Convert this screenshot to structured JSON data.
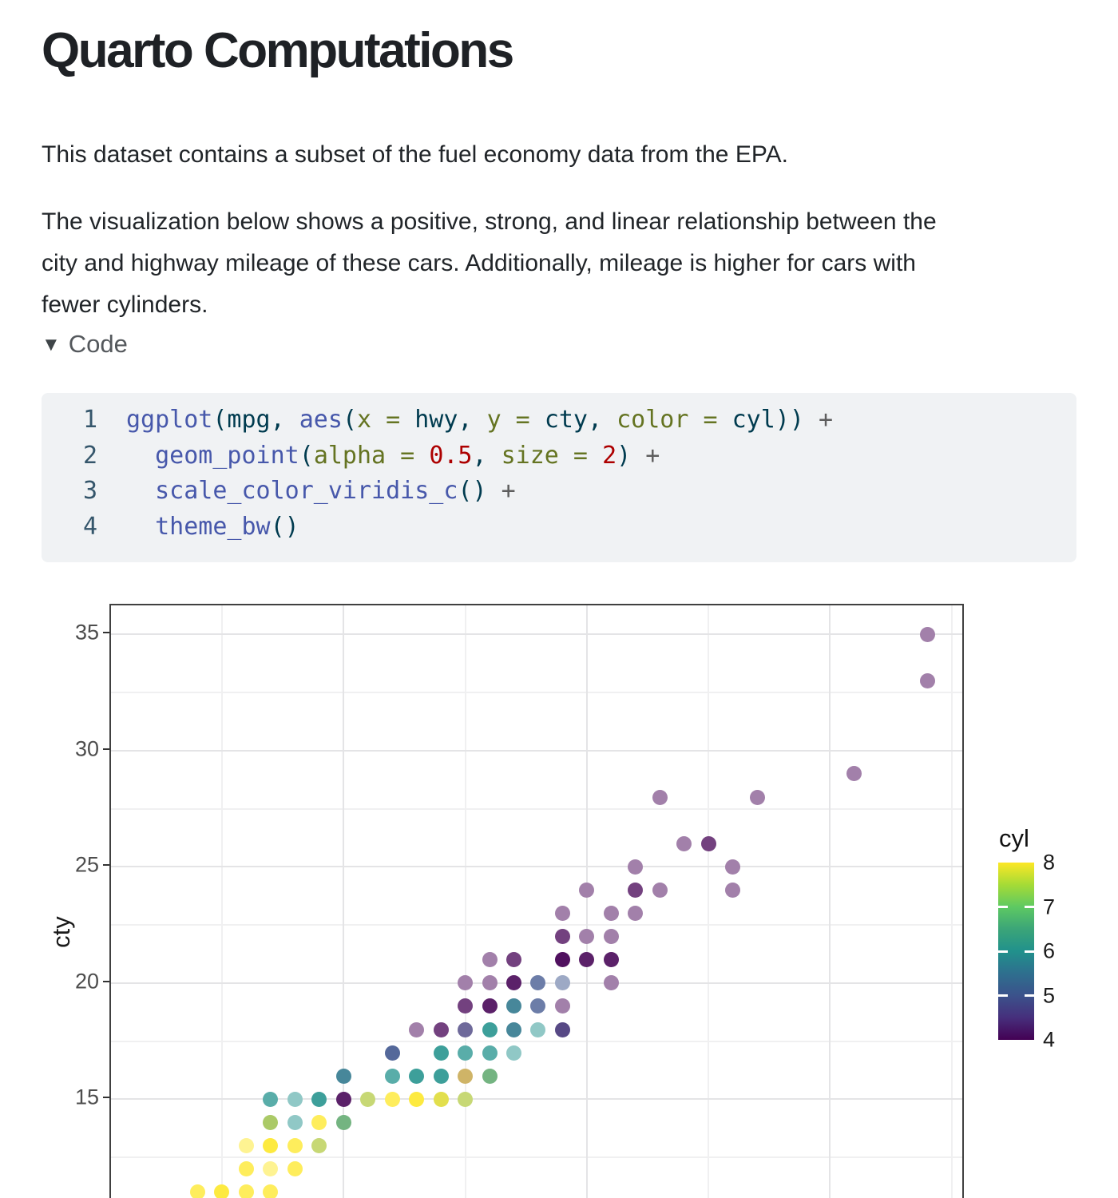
{
  "page": {
    "title": "Quarto Computations"
  },
  "intro": {
    "p1": "This dataset contains a subset of the fuel economy data from the EPA.",
    "p2_lines": [
      "The visualization below shows a positive, strong, and linear relationship between the",
      "city and highway mileage of these cars. Additionally, mileage is higher for cars with",
      "fewer cylinders."
    ]
  },
  "code_section": {
    "toggle_label": "Code",
    "collapse_icon": "▼",
    "lines": [
      {
        "n": "1",
        "tokens": [
          [
            "fu",
            "ggplot"
          ],
          [
            "pl",
            "(mpg, "
          ],
          [
            "fu",
            "aes"
          ],
          [
            "pl",
            "("
          ],
          [
            "at",
            "x = "
          ],
          [
            "pl",
            "hwy, "
          ],
          [
            "at",
            "y = "
          ],
          [
            "pl",
            "cty, "
          ],
          [
            "at",
            "color = "
          ],
          [
            "pl",
            "cyl)) "
          ],
          [
            "op",
            "+"
          ]
        ]
      },
      {
        "n": "2",
        "tokens": [
          [
            "pl",
            "  "
          ],
          [
            "fu",
            "geom_point"
          ],
          [
            "pl",
            "("
          ],
          [
            "at",
            "alpha = "
          ],
          [
            "dv",
            "0.5"
          ],
          [
            "pl",
            ", "
          ],
          [
            "at",
            "size = "
          ],
          [
            "dv",
            "2"
          ],
          [
            "pl",
            ") "
          ],
          [
            "op",
            "+"
          ]
        ]
      },
      {
        "n": "3",
        "tokens": [
          [
            "pl",
            "  "
          ],
          [
            "fu",
            "scale_color_viridis_c"
          ],
          [
            "pl",
            "() "
          ],
          [
            "op",
            "+"
          ]
        ]
      },
      {
        "n": "4",
        "tokens": [
          [
            "pl",
            "  "
          ],
          [
            "fu",
            "theme_bw"
          ],
          [
            "pl",
            "()"
          ]
        ]
      }
    ]
  },
  "chart_data": {
    "type": "scatter",
    "title": "",
    "xlabel": "",
    "ylabel": "cty",
    "x_range": [
      10.4,
      45.6
    ],
    "y_ticks_major": [
      35,
      30,
      25,
      20,
      15
    ],
    "y_gridlines_minor": [
      32.5,
      27.5,
      22.5,
      17.5,
      12.5
    ],
    "x_gridlines_major": [
      20,
      30,
      40
    ],
    "x_gridlines_minor": [
      15,
      25,
      35,
      45
    ],
    "grid": true,
    "point_alpha": 0.5,
    "point_size": 2,
    "viridis": {
      "4": "#440154",
      "5": "#3B528B",
      "6": "#21918C",
      "7": "#5EC962",
      "8": "#FDE725"
    },
    "legend": {
      "title": "cyl",
      "position": "right",
      "tick_labels": [
        8,
        7,
        6,
        5,
        4
      ],
      "tick_marks": [
        7,
        6,
        5
      ],
      "gradient_stops": [
        "#FDE725",
        "#A5DB36",
        "#5EC962",
        "#3BA578",
        "#21918C",
        "#2E6F8E",
        "#3B528B",
        "#462F7C",
        "#440154"
      ]
    },
    "points": [
      {
        "hwy": 44,
        "cty": 35,
        "layers": [
          4
        ]
      },
      {
        "hwy": 44,
        "cty": 33,
        "layers": [
          4
        ]
      },
      {
        "hwy": 41,
        "cty": 29,
        "layers": [
          4
        ]
      },
      {
        "hwy": 33,
        "cty": 28,
        "layers": [
          4
        ]
      },
      {
        "hwy": 37,
        "cty": 28,
        "layers": [
          4
        ]
      },
      {
        "hwy": 34,
        "cty": 26,
        "layers": [
          4
        ]
      },
      {
        "hwy": 35,
        "cty": 26,
        "layers": [
          4,
          4
        ]
      },
      {
        "hwy": 32,
        "cty": 25,
        "layers": [
          4
        ]
      },
      {
        "hwy": 36,
        "cty": 25,
        "layers": [
          4
        ]
      },
      {
        "hwy": 30,
        "cty": 24,
        "layers": [
          4
        ]
      },
      {
        "hwy": 32,
        "cty": 24,
        "layers": [
          4,
          4
        ]
      },
      {
        "hwy": 33,
        "cty": 24,
        "layers": [
          4
        ]
      },
      {
        "hwy": 36,
        "cty": 24,
        "layers": [
          4
        ]
      },
      {
        "hwy": 29,
        "cty": 23,
        "layers": [
          4
        ]
      },
      {
        "hwy": 31,
        "cty": 23,
        "layers": [
          4
        ]
      },
      {
        "hwy": 32,
        "cty": 23,
        "layers": [
          4
        ]
      },
      {
        "hwy": 29,
        "cty": 22,
        "layers": [
          4,
          4
        ]
      },
      {
        "hwy": 30,
        "cty": 22,
        "layers": [
          4
        ]
      },
      {
        "hwy": 31,
        "cty": 22,
        "layers": [
          4
        ]
      },
      {
        "hwy": 26,
        "cty": 21,
        "layers": [
          4
        ]
      },
      {
        "hwy": 27,
        "cty": 21,
        "layers": [
          4,
          4
        ]
      },
      {
        "hwy": 29,
        "cty": 21,
        "layers": [
          4,
          4,
          4,
          4
        ]
      },
      {
        "hwy": 30,
        "cty": 21,
        "layers": [
          4,
          4,
          4
        ]
      },
      {
        "hwy": 31,
        "cty": 21,
        "layers": [
          4,
          4,
          4
        ]
      },
      {
        "hwy": 25,
        "cty": 20,
        "layers": [
          4
        ]
      },
      {
        "hwy": 26,
        "cty": 20,
        "layers": [
          4
        ]
      },
      {
        "hwy": 27,
        "cty": 20,
        "layers": [
          4,
          4,
          4
        ]
      },
      {
        "hwy": 28,
        "cty": 20,
        "layers": [
          5,
          5
        ]
      },
      {
        "hwy": 29,
        "cty": 20,
        "layers": [
          5
        ]
      },
      {
        "hwy": 31,
        "cty": 20,
        "layers": [
          4
        ]
      },
      {
        "hwy": 25,
        "cty": 19,
        "layers": [
          4,
          4
        ]
      },
      {
        "hwy": 26,
        "cty": 19,
        "layers": [
          4,
          4,
          4
        ]
      },
      {
        "hwy": 27,
        "cty": 19,
        "layers": [
          5,
          5,
          6
        ]
      },
      {
        "hwy": 28,
        "cty": 19,
        "layers": [
          5,
          5
        ]
      },
      {
        "hwy": 29,
        "cty": 19,
        "layers": [
          4
        ]
      },
      {
        "hwy": 23,
        "cty": 18,
        "layers": [
          4
        ]
      },
      {
        "hwy": 24,
        "cty": 18,
        "layers": [
          4,
          4
        ]
      },
      {
        "hwy": 25,
        "cty": 18,
        "layers": [
          4,
          5
        ]
      },
      {
        "hwy": 26,
        "cty": 18,
        "layers": [
          6,
          6,
          6
        ]
      },
      {
        "hwy": 27,
        "cty": 18,
        "layers": [
          5,
          5,
          6
        ]
      },
      {
        "hwy": 28,
        "cty": 18,
        "layers": [
          6
        ]
      },
      {
        "hwy": 29,
        "cty": 18,
        "layers": [
          4,
          4,
          5
        ]
      },
      {
        "hwy": 22,
        "cty": 17,
        "layers": [
          5,
          5,
          5
        ]
      },
      {
        "hwy": 24,
        "cty": 17,
        "layers": [
          6,
          6,
          6
        ]
      },
      {
        "hwy": 25,
        "cty": 17,
        "layers": [
          6,
          6
        ]
      },
      {
        "hwy": 26,
        "cty": 17,
        "layers": [
          6,
          6
        ]
      },
      {
        "hwy": 27,
        "cty": 17,
        "layers": [
          6
        ]
      },
      {
        "hwy": 20,
        "cty": 16,
        "layers": [
          5,
          5,
          6
        ]
      },
      {
        "hwy": 22,
        "cty": 16,
        "layers": [
          6,
          6
        ]
      },
      {
        "hwy": 23,
        "cty": 16,
        "layers": [
          6,
          6,
          6
        ]
      },
      {
        "hwy": 24,
        "cty": 16,
        "layers": [
          6,
          6,
          6
        ]
      },
      {
        "hwy": 25,
        "cty": 16,
        "layers": [
          4,
          8
        ]
      },
      {
        "hwy": 26,
        "cty": 16,
        "layers": [
          6,
          8,
          6
        ]
      },
      {
        "hwy": 17,
        "cty": 15,
        "layers": [
          6,
          6
        ]
      },
      {
        "hwy": 18,
        "cty": 15,
        "layers": [
          6
        ]
      },
      {
        "hwy": 19,
        "cty": 15,
        "layers": [
          6,
          6,
          6
        ]
      },
      {
        "hwy": 20,
        "cty": 15,
        "layers": [
          4,
          4,
          4
        ]
      },
      {
        "hwy": 21,
        "cty": 15,
        "layers": [
          6,
          8
        ]
      },
      {
        "hwy": 22,
        "cty": 15,
        "layers": [
          8,
          8
        ]
      },
      {
        "hwy": 23,
        "cty": 15,
        "layers": [
          8,
          8,
          8
        ]
      },
      {
        "hwy": 24,
        "cty": 15,
        "layers": [
          6,
          8,
          8
        ]
      },
      {
        "hwy": 25,
        "cty": 15,
        "layers": [
          6,
          8
        ]
      },
      {
        "hwy": 17,
        "cty": 14,
        "layers": [
          6,
          6,
          8
        ]
      },
      {
        "hwy": 18,
        "cty": 14,
        "layers": [
          6
        ]
      },
      {
        "hwy": 19,
        "cty": 14,
        "layers": [
          8,
          8
        ]
      },
      {
        "hwy": 20,
        "cty": 14,
        "layers": [
          6,
          8,
          6
        ]
      },
      {
        "hwy": 16,
        "cty": 13,
        "layers": [
          8
        ]
      },
      {
        "hwy": 17,
        "cty": 13,
        "layers": [
          8,
          8,
          8
        ]
      },
      {
        "hwy": 18,
        "cty": 13,
        "layers": [
          8,
          8
        ]
      },
      {
        "hwy": 19,
        "cty": 13,
        "layers": [
          6,
          8
        ]
      },
      {
        "hwy": 16,
        "cty": 12,
        "layers": [
          8,
          8
        ]
      },
      {
        "hwy": 17,
        "cty": 12,
        "layers": [
          8
        ]
      },
      {
        "hwy": 18,
        "cty": 12,
        "layers": [
          8,
          8
        ]
      },
      {
        "hwy": 14,
        "cty": 11,
        "layers": [
          8,
          8
        ]
      },
      {
        "hwy": 15,
        "cty": 11,
        "layers": [
          8,
          8,
          8
        ]
      },
      {
        "hwy": 16,
        "cty": 11,
        "layers": [
          8,
          8
        ]
      },
      {
        "hwy": 17,
        "cty": 11,
        "layers": [
          8,
          8
        ]
      }
    ]
  }
}
